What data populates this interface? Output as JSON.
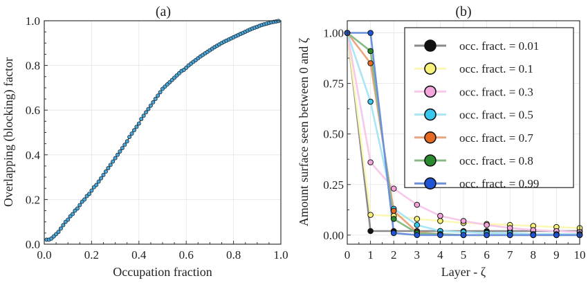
{
  "chart_data": [
    {
      "type": "scatter",
      "title": "(a)",
      "xlabel": "Occupation fraction",
      "ylabel": "Overlapping (blocking) factor",
      "xlim": [
        0,
        1
      ],
      "ylim": [
        0,
        1
      ],
      "xticks": [
        "0.0",
        "0.2",
        "0.4",
        "0.6",
        "0.8",
        "1.0"
      ],
      "yticks": [
        "0.0",
        "0.2",
        "0.4",
        "0.6",
        "0.8",
        "1.0"
      ],
      "grid": true,
      "marker_color": "#4aa8d8",
      "line_color": "#222222",
      "series": [
        {
          "x": [
            0.01,
            0.02,
            0.03,
            0.04,
            0.05,
            0.06,
            0.07,
            0.08,
            0.09,
            0.1,
            0.11,
            0.12,
            0.13,
            0.14,
            0.15,
            0.16,
            0.17,
            0.18,
            0.19,
            0.2,
            0.21,
            0.22,
            0.23,
            0.24,
            0.25,
            0.26,
            0.27,
            0.28,
            0.29,
            0.3,
            0.31,
            0.32,
            0.33,
            0.34,
            0.35,
            0.36,
            0.37,
            0.38,
            0.39,
            0.4,
            0.41,
            0.42,
            0.43,
            0.44,
            0.45,
            0.46,
            0.47,
            0.48,
            0.49,
            0.5,
            0.51,
            0.52,
            0.53,
            0.54,
            0.55,
            0.56,
            0.57,
            0.58,
            0.59,
            0.6,
            0.61,
            0.62,
            0.63,
            0.64,
            0.65,
            0.66,
            0.67,
            0.68,
            0.69,
            0.7,
            0.71,
            0.72,
            0.73,
            0.74,
            0.75,
            0.76,
            0.77,
            0.78,
            0.79,
            0.8,
            0.81,
            0.82,
            0.83,
            0.84,
            0.85,
            0.86,
            0.87,
            0.88,
            0.89,
            0.9,
            0.91,
            0.92,
            0.93,
            0.94,
            0.95,
            0.96,
            0.97,
            0.98,
            0.99
          ],
          "y": [
            0.02,
            0.02,
            0.025,
            0.035,
            0.045,
            0.055,
            0.07,
            0.085,
            0.1,
            0.11,
            0.125,
            0.135,
            0.15,
            0.16,
            0.175,
            0.19,
            0.2,
            0.215,
            0.225,
            0.24,
            0.255,
            0.265,
            0.28,
            0.295,
            0.31,
            0.325,
            0.34,
            0.355,
            0.37,
            0.385,
            0.4,
            0.415,
            0.43,
            0.445,
            0.46,
            0.48,
            0.495,
            0.51,
            0.525,
            0.54,
            0.56,
            0.575,
            0.59,
            0.605,
            0.62,
            0.635,
            0.65,
            0.665,
            0.68,
            0.695,
            0.705,
            0.715,
            0.725,
            0.735,
            0.745,
            0.755,
            0.765,
            0.775,
            0.78,
            0.79,
            0.8,
            0.808,
            0.816,
            0.824,
            0.832,
            0.84,
            0.847,
            0.854,
            0.861,
            0.868,
            0.875,
            0.882,
            0.888,
            0.894,
            0.9,
            0.906,
            0.911,
            0.916,
            0.921,
            0.926,
            0.931,
            0.936,
            0.941,
            0.946,
            0.951,
            0.956,
            0.961,
            0.965,
            0.969,
            0.973,
            0.977,
            0.981,
            0.984,
            0.987,
            0.99,
            0.993,
            0.995,
            0.997,
            0.999
          ]
        }
      ]
    },
    {
      "type": "line",
      "title": "(b)",
      "xlabel": "Layer - ζ",
      "ylabel": "Amount surface seen between 0 and ζ",
      "xlim": [
        0,
        10
      ],
      "ylim": [
        -0.045,
        1.06
      ],
      "xticks": [
        "0",
        "1",
        "2",
        "3",
        "4",
        "5",
        "6",
        "7",
        "8",
        "9",
        "10"
      ],
      "yticks": [
        "0.00",
        "0.25",
        "0.50",
        "0.75",
        "1.00"
      ],
      "grid": true,
      "legend_position": "top-right",
      "x": [
        0,
        1,
        2,
        3,
        4,
        5,
        6,
        7,
        8,
        9,
        10
      ],
      "series": [
        {
          "name": "occ. fract. = 0.01",
          "line_color": "#8a8a8a",
          "marker_color": "#111111",
          "values": [
            1.0,
            0.02,
            0.02,
            0.02,
            0.02,
            0.02,
            0.02,
            0.02,
            0.02,
            0.02,
            0.02
          ]
        },
        {
          "name": "occ. fract. = 0.1",
          "line_color": "#fbf7b4",
          "marker_color": "#f9f27a",
          "values": [
            1.0,
            0.1,
            0.095,
            0.08,
            0.07,
            0.06,
            0.055,
            0.05,
            0.045,
            0.04,
            0.035
          ]
        },
        {
          "name": "occ. fract. = 0.3",
          "line_color": "#f8c8ea",
          "marker_color": "#f2a6dc",
          "values": [
            1.0,
            0.36,
            0.23,
            0.15,
            0.095,
            0.07,
            0.05,
            0.035,
            0.025,
            0.02,
            0.015
          ]
        },
        {
          "name": "occ. fract. = 0.5",
          "line_color": "#a9e6f5",
          "marker_color": "#38c8ee",
          "values": [
            1.0,
            0.66,
            0.13,
            0.05,
            0.02,
            0.015,
            0.01,
            0.01,
            0.005,
            0.005,
            0.005
          ]
        },
        {
          "name": "occ. fract. = 0.7",
          "line_color": "#eba57e",
          "marker_color": "#e66a24",
          "values": [
            1.0,
            0.85,
            0.12,
            0.015,
            0.005,
            0.0,
            0.0,
            0.0,
            0.0,
            0.0,
            0.0
          ]
        },
        {
          "name": "occ. fract. = 0.8",
          "line_color": "#86bb86",
          "marker_color": "#2a8a2e",
          "values": [
            1.0,
            0.91,
            0.08,
            0.01,
            0.005,
            0.0,
            0.0,
            0.0,
            0.0,
            0.0,
            0.0
          ]
        },
        {
          "name": "occ. fract. = 0.99",
          "line_color": "#6c90dc",
          "marker_color": "#1f55d4",
          "values": [
            1.0,
            1.0,
            0.01,
            0.0,
            0.0,
            0.0,
            0.0,
            0.0,
            0.0,
            0.0,
            0.0
          ]
        }
      ]
    }
  ]
}
